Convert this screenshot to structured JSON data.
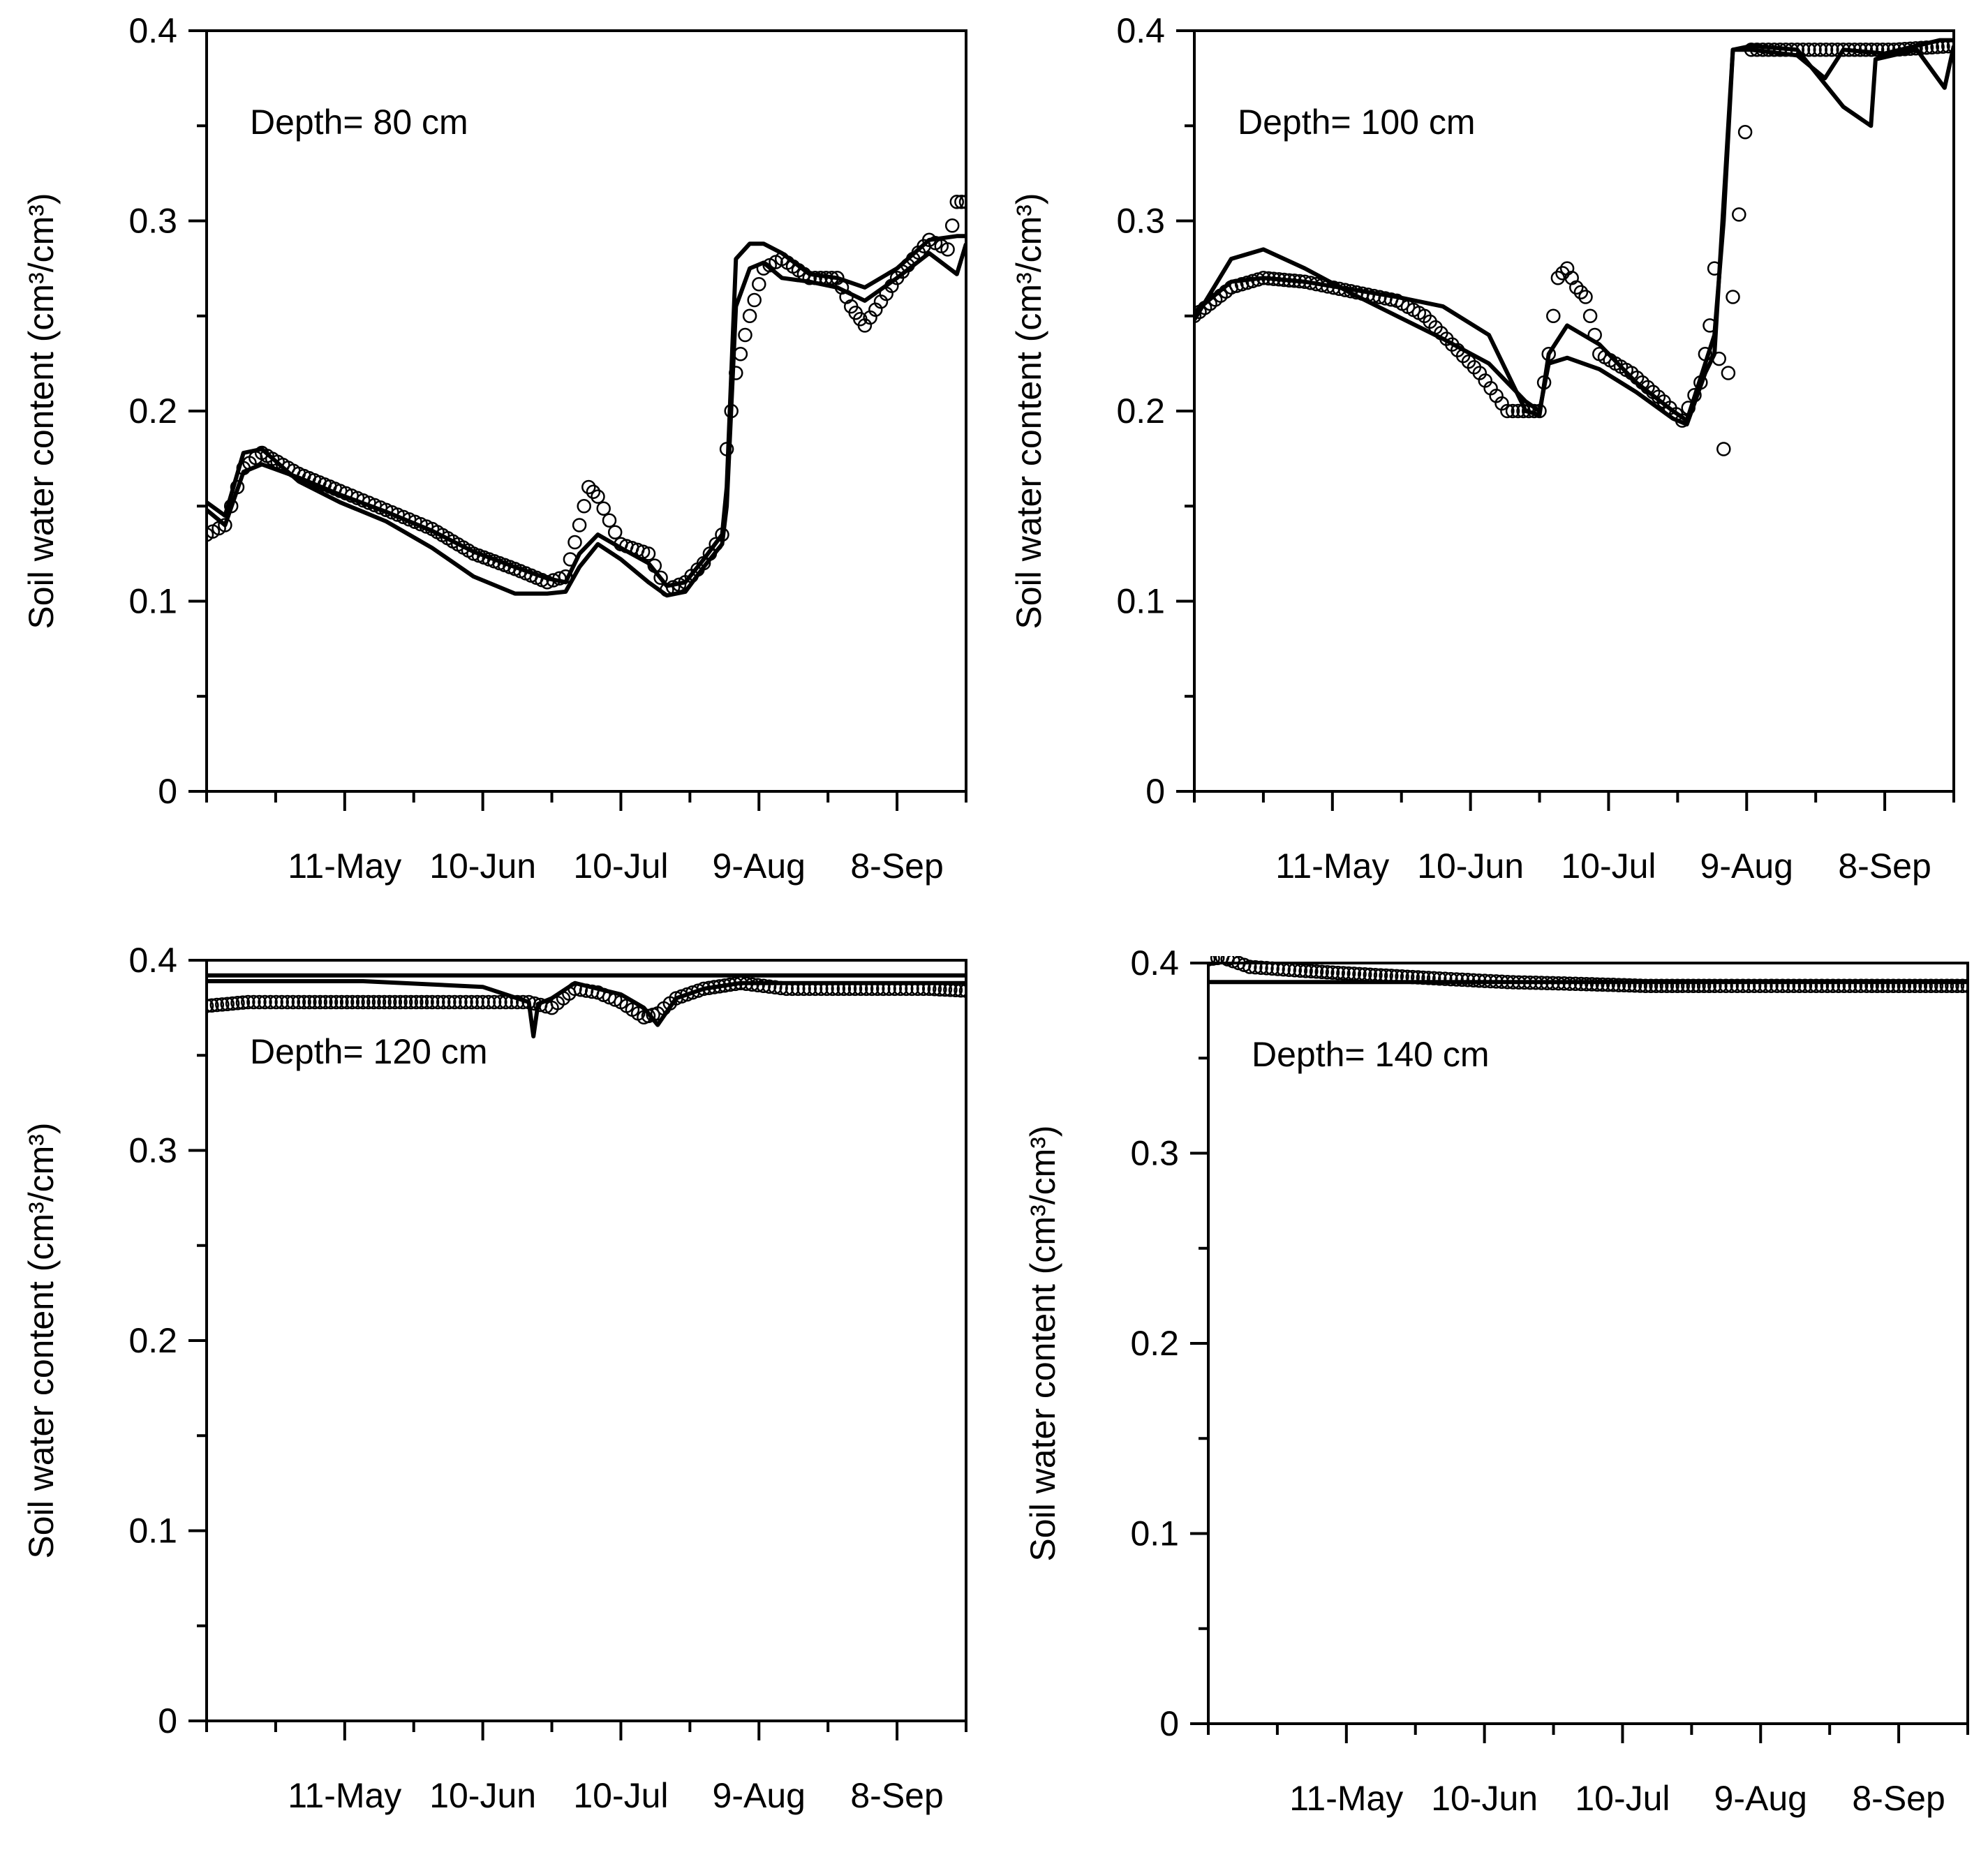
{
  "figure": {
    "colors": {
      "ink": "#000000",
      "background": "#ffffff"
    },
    "panels": [
      {
        "id": "p80",
        "depth_label": "Depth= 80 cm"
      },
      {
        "id": "p100",
        "depth_label": "Depth= 100 cm"
      },
      {
        "id": "p120",
        "depth_label": "Depth= 120 cm"
      },
      {
        "id": "p140",
        "depth_label": "Depth= 140 cm"
      }
    ]
  },
  "chart_data": [
    {
      "type": "line",
      "panel": "p80",
      "title": "",
      "annotation": "Depth= 80 cm",
      "xlabel": "",
      "ylabel": "Soil water content (cm³/cm³)",
      "x_ticks": [
        "11-May",
        "10-Jun",
        "10-Jul",
        "9-Aug",
        "8-Sep"
      ],
      "y_ticks": [
        "0",
        "0.1",
        "0.2",
        "0.3",
        "0.4"
      ],
      "xlim": [
        "2012-04-11",
        "2012-09-23"
      ],
      "ylim": [
        0,
        0.4
      ],
      "grid": false,
      "series": [
        {
          "style": "open-circles",
          "x": [
            "2012-04-11",
            "2012-04-15",
            "2012-04-19",
            "2012-04-23",
            "2012-05-01",
            "2012-05-10",
            "2012-05-20",
            "2012-05-30",
            "2012-06-08",
            "2012-06-17",
            "2012-06-24",
            "2012-06-28",
            "2012-07-01",
            "2012-07-03",
            "2012-07-05",
            "2012-07-10",
            "2012-07-16",
            "2012-07-20",
            "2012-07-24",
            "2012-07-28",
            "2012-08-01",
            "2012-08-02",
            "2012-08-04",
            "2012-08-07",
            "2012-08-10",
            "2012-08-14",
            "2012-08-20",
            "2012-08-26",
            "2012-08-29",
            "2012-09-01",
            "2012-09-08",
            "2012-09-15",
            "2012-09-19",
            "2012-09-21",
            "2012-09-23"
          ],
          "y": [
            0.135,
            0.14,
            0.17,
            0.178,
            0.167,
            0.158,
            0.148,
            0.138,
            0.125,
            0.117,
            0.11,
            0.113,
            0.14,
            0.16,
            0.155,
            0.13,
            0.125,
            0.106,
            0.11,
            0.12,
            0.135,
            0.18,
            0.22,
            0.25,
            0.275,
            0.28,
            0.27,
            0.27,
            0.255,
            0.245,
            0.27,
            0.29,
            0.285,
            0.31,
            0.31
          ]
        },
        {
          "style": "line",
          "x": [
            "2012-04-11",
            "2012-04-15",
            "2012-04-19",
            "2012-04-23",
            "2012-05-01",
            "2012-05-10",
            "2012-05-20",
            "2012-05-30",
            "2012-06-08",
            "2012-06-17",
            "2012-06-24",
            "2012-06-28",
            "2012-07-01",
            "2012-07-05",
            "2012-07-10",
            "2012-07-16",
            "2012-07-20",
            "2012-07-24",
            "2012-07-28",
            "2012-08-01",
            "2012-08-02",
            "2012-08-04",
            "2012-08-07",
            "2012-08-10",
            "2012-08-14",
            "2012-08-20",
            "2012-08-26",
            "2012-09-01",
            "2012-09-08",
            "2012-09-15",
            "2012-09-21",
            "2012-09-23"
          ],
          "y": [
            0.148,
            0.14,
            0.168,
            0.172,
            0.165,
            0.156,
            0.147,
            0.137,
            0.126,
            0.118,
            0.112,
            0.11,
            0.125,
            0.135,
            0.128,
            0.12,
            0.108,
            0.11,
            0.122,
            0.135,
            0.16,
            0.28,
            0.288,
            0.288,
            0.283,
            0.272,
            0.27,
            0.265,
            0.275,
            0.29,
            0.292,
            0.292
          ]
        },
        {
          "style": "line",
          "x": [
            "2012-04-11",
            "2012-04-15",
            "2012-04-19",
            "2012-04-23",
            "2012-05-01",
            "2012-05-10",
            "2012-05-20",
            "2012-05-30",
            "2012-06-08",
            "2012-06-17",
            "2012-06-24",
            "2012-06-28",
            "2012-07-01",
            "2012-07-05",
            "2012-07-10",
            "2012-07-16",
            "2012-07-20",
            "2012-07-24",
            "2012-07-28",
            "2012-08-01",
            "2012-08-02",
            "2012-08-04",
            "2012-08-07",
            "2012-08-10",
            "2012-08-14",
            "2012-08-20",
            "2012-08-26",
            "2012-09-01",
            "2012-09-08",
            "2012-09-15",
            "2012-09-21",
            "2012-09-23"
          ],
          "y": [
            0.152,
            0.145,
            0.178,
            0.18,
            0.163,
            0.152,
            0.142,
            0.128,
            0.113,
            0.104,
            0.104,
            0.105,
            0.118,
            0.13,
            0.122,
            0.11,
            0.103,
            0.105,
            0.118,
            0.13,
            0.15,
            0.255,
            0.275,
            0.278,
            0.27,
            0.268,
            0.265,
            0.258,
            0.27,
            0.283,
            0.272,
            0.288
          ]
        }
      ]
    },
    {
      "type": "line",
      "panel": "p100",
      "title": "",
      "annotation": "Depth= 100 cm",
      "xlabel": "",
      "ylabel": "Soil water content (cm³/cm³)",
      "x_ticks": [
        "11-May",
        "10-Jun",
        "10-Jul",
        "9-Aug",
        "8-Sep"
      ],
      "y_ticks": [
        "0",
        "0.1",
        "0.2",
        "0.3",
        "0.4"
      ],
      "xlim": [
        "2012-04-11",
        "2012-09-23"
      ],
      "ylim": [
        0,
        0.4
      ],
      "grid": false,
      "series": [
        {
          "style": "open-circles",
          "x": [
            "2012-04-11",
            "2012-04-19",
            "2012-04-26",
            "2012-05-05",
            "2012-05-15",
            "2012-05-25",
            "2012-05-31",
            "2012-06-06",
            "2012-06-12",
            "2012-06-18",
            "2012-06-25",
            "2012-06-27",
            "2012-06-29",
            "2012-07-01",
            "2012-07-03",
            "2012-07-05",
            "2012-07-08",
            "2012-07-15",
            "2012-07-22",
            "2012-07-26",
            "2012-07-30",
            "2012-08-01",
            "2012-08-02",
            "2012-08-04",
            "2012-08-06",
            "2012-08-10",
            "2012-08-20",
            "2012-08-30",
            "2012-09-10",
            "2012-09-23"
          ],
          "y": [
            0.25,
            0.265,
            0.27,
            0.268,
            0.263,
            0.258,
            0.25,
            0.235,
            0.22,
            0.2,
            0.2,
            0.23,
            0.27,
            0.275,
            0.265,
            0.26,
            0.23,
            0.22,
            0.205,
            0.195,
            0.215,
            0.245,
            0.275,
            0.18,
            0.26,
            0.39,
            0.39,
            0.39,
            0.39,
            0.392
          ]
        },
        {
          "style": "line",
          "x": [
            "2012-04-11",
            "2012-04-19",
            "2012-04-26",
            "2012-05-05",
            "2012-05-15",
            "2012-05-25",
            "2012-06-04",
            "2012-06-14",
            "2012-06-22",
            "2012-06-25",
            "2012-06-27",
            "2012-07-01",
            "2012-07-08",
            "2012-07-16",
            "2012-07-24",
            "2012-07-27",
            "2012-07-31",
            "2012-08-02",
            "2012-08-04",
            "2012-08-06",
            "2012-08-10",
            "2012-08-20",
            "2012-08-26",
            "2012-08-30",
            "2012-09-08",
            "2012-09-20",
            "2012-09-23"
          ],
          "y": [
            0.252,
            0.268,
            0.27,
            0.268,
            0.264,
            0.26,
            0.255,
            0.24,
            0.2,
            0.198,
            0.23,
            0.245,
            0.235,
            0.215,
            0.2,
            0.195,
            0.225,
            0.24,
            0.3,
            0.39,
            0.39,
            0.387,
            0.375,
            0.39,
            0.388,
            0.395,
            0.395
          ]
        },
        {
          "style": "line",
          "x": [
            "2012-04-11",
            "2012-04-19",
            "2012-04-26",
            "2012-05-05",
            "2012-05-15",
            "2012-05-25",
            "2012-06-04",
            "2012-06-14",
            "2012-06-22",
            "2012-06-25",
            "2012-06-27",
            "2012-07-01",
            "2012-07-08",
            "2012-07-16",
            "2012-07-24",
            "2012-07-27",
            "2012-07-31",
            "2012-08-02",
            "2012-08-04",
            "2012-08-06",
            "2012-08-10",
            "2012-08-20",
            "2012-08-30",
            "2012-09-05",
            "2012-09-06",
            "2012-09-15",
            "2012-09-21",
            "2012-09-23"
          ],
          "y": [
            0.248,
            0.28,
            0.285,
            0.275,
            0.262,
            0.25,
            0.238,
            0.225,
            0.205,
            0.2,
            0.225,
            0.228,
            0.222,
            0.21,
            0.196,
            0.193,
            0.22,
            0.23,
            0.31,
            0.39,
            0.392,
            0.39,
            0.36,
            0.35,
            0.385,
            0.39,
            0.37,
            0.392
          ]
        }
      ]
    },
    {
      "type": "line",
      "panel": "p120",
      "title": "",
      "annotation": "Depth= 120 cm",
      "xlabel": "",
      "ylabel": "Soil water content (cm³/cm³)",
      "x_ticks": [
        "11-May",
        "10-Jun",
        "10-Jul",
        "9-Aug",
        "8-Sep"
      ],
      "y_ticks": [
        "0",
        "0.1",
        "0.2",
        "0.3",
        "0.4"
      ],
      "xlim": [
        "2012-04-11",
        "2012-09-23"
      ],
      "ylim": [
        0,
        0.4
      ],
      "grid": false,
      "series": [
        {
          "style": "open-circles",
          "x": [
            "2012-04-11",
            "2012-04-20",
            "2012-05-01",
            "2012-05-15",
            "2012-05-30",
            "2012-06-10",
            "2012-06-20",
            "2012-06-25",
            "2012-06-30",
            "2012-07-05",
            "2012-07-10",
            "2012-07-15",
            "2012-07-18",
            "2012-07-22",
            "2012-07-28",
            "2012-08-05",
            "2012-08-15",
            "2012-08-25",
            "2012-09-05",
            "2012-09-15",
            "2012-09-23"
          ],
          "y": [
            0.376,
            0.378,
            0.378,
            0.378,
            0.378,
            0.378,
            0.378,
            0.375,
            0.385,
            0.383,
            0.378,
            0.37,
            0.372,
            0.38,
            0.385,
            0.388,
            0.385,
            0.385,
            0.385,
            0.385,
            0.384
          ]
        },
        {
          "style": "line",
          "x": [
            "2012-04-11",
            "2012-05-15",
            "2012-06-10",
            "2012-06-20",
            "2012-06-21",
            "2012-06-22",
            "2012-06-25",
            "2012-06-30",
            "2012-07-05",
            "2012-07-10",
            "2012-07-15",
            "2012-07-18",
            "2012-07-22",
            "2012-07-28",
            "2012-08-05",
            "2012-08-15",
            "2012-09-23"
          ],
          "y": [
            0.389,
            0.389,
            0.386,
            0.378,
            0.36,
            0.377,
            0.38,
            0.388,
            0.385,
            0.382,
            0.375,
            0.366,
            0.38,
            0.385,
            0.388,
            0.388,
            0.388
          ]
        },
        {
          "style": "line",
          "x": [
            "2012-04-11",
            "2012-09-23"
          ],
          "y": [
            0.392,
            0.392
          ]
        }
      ]
    },
    {
      "type": "line",
      "panel": "p140",
      "title": "",
      "annotation": "Depth= 140 cm",
      "xlabel": "",
      "ylabel": "Soil water content (cm³/cm³)",
      "x_ticks": [
        "11-May",
        "10-Jun",
        "10-Jul",
        "9-Aug",
        "8-Sep"
      ],
      "y_ticks": [
        "0",
        "0.1",
        "0.2",
        "0.3",
        "0.4"
      ],
      "xlim": [
        "2012-04-11",
        "2012-09-23"
      ],
      "ylim": [
        0,
        0.4
      ],
      "grid": false,
      "series": [
        {
          "style": "open-circles",
          "x": [
            "2012-04-11",
            "2012-04-14",
            "2012-04-20",
            "2012-05-01",
            "2012-05-15",
            "2012-05-30",
            "2012-06-15",
            "2012-07-01",
            "2012-07-15",
            "2012-07-30",
            "2012-08-15",
            "2012-09-01",
            "2012-09-15",
            "2012-09-23"
          ],
          "y": [
            0.402,
            0.403,
            0.398,
            0.396,
            0.394,
            0.392,
            0.39,
            0.389,
            0.388,
            0.388,
            0.388,
            0.388,
            0.388,
            0.388
          ]
        },
        {
          "style": "line",
          "x": [
            "2012-04-11",
            "2012-09-23"
          ],
          "y": [
            0.39,
            0.39
          ]
        }
      ]
    }
  ]
}
